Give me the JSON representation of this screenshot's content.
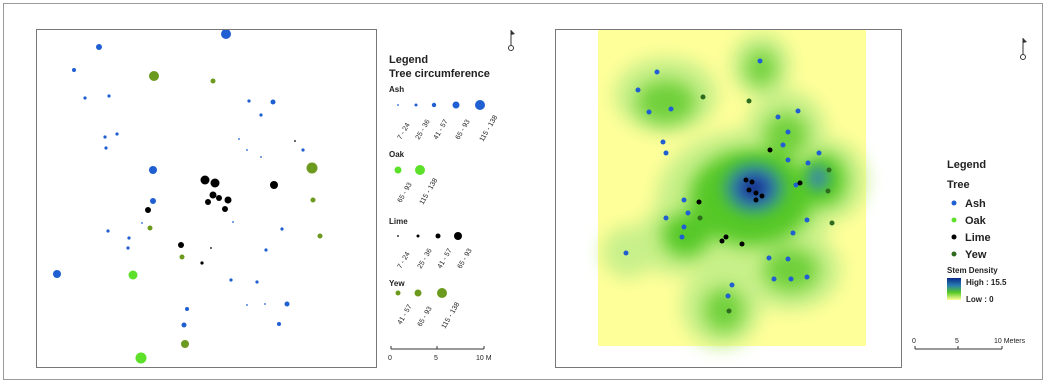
{
  "left_panel": {
    "legend": {
      "title": "Legend",
      "subtitle": "Tree circumference",
      "groups": [
        {
          "species": "Ash",
          "color": "#1f5fd1",
          "classes": [
            "7 - 24",
            "25 - 36",
            "41 - 57",
            "65 - 93",
            "115 - 138"
          ]
        },
        {
          "species": "Oak",
          "color": "#5ce02a",
          "classes": [
            "65 - 93",
            "115 - 138"
          ]
        },
        {
          "species": "Lime",
          "color": "#000000",
          "classes": [
            "7 - 24",
            "25 - 36",
            "41 - 57",
            "65 - 93"
          ]
        },
        {
          "species": "Yew",
          "color": "#6b9a1e",
          "classes": [
            "41 - 57",
            "65 - 93",
            "115 - 138"
          ]
        }
      ]
    },
    "scale_bar": {
      "labels": [
        "0",
        "5",
        "10 M"
      ]
    },
    "north_arrow": "north-arrow-icon"
  },
  "right_panel": {
    "legend": {
      "title": "Legend",
      "subtitle": "Tree",
      "items": [
        {
          "label": "Ash",
          "color": "#1f5fd1"
        },
        {
          "label": "Oak",
          "color": "#5ce02a"
        },
        {
          "label": "Lime",
          "color": "#000000"
        },
        {
          "label": "Yew",
          "color": "#2e6b1e"
        }
      ],
      "density_title": "Stem Density",
      "density_high": "High : 15.5",
      "density_low": "Low : 0"
    },
    "scale_bar": {
      "labels": [
        "0",
        "5",
        "10 Meters"
      ]
    },
    "north_arrow": "north-arrow-icon",
    "colors": {
      "background": "#ffff99",
      "low": "#c8f08a",
      "mid": "#55c825",
      "high": "#0a2a8a"
    }
  }
}
